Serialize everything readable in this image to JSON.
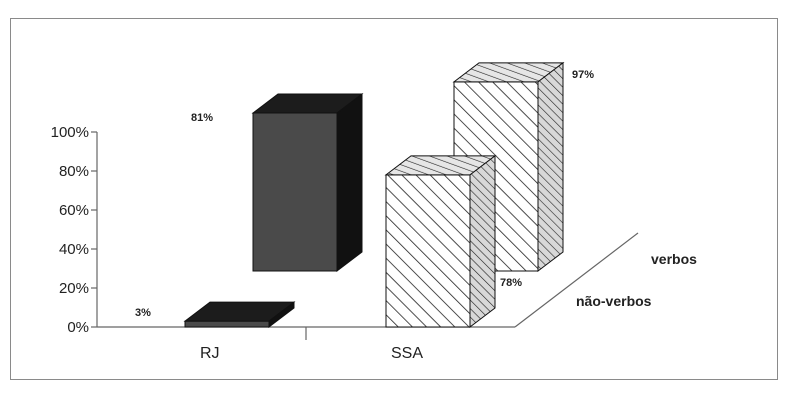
{
  "chart_data": {
    "type": "bar",
    "categories": [
      "RJ",
      "SSA"
    ],
    "series": [
      {
        "name": "não-verbos",
        "values": [
          3,
          78
        ],
        "data_labels": [
          "3%",
          "78%"
        ]
      },
      {
        "name": "verbos",
        "values": [
          81,
          97
        ],
        "data_labels": [
          "81%",
          "97%"
        ]
      }
    ],
    "yticks": [
      "100%",
      "80%",
      "60%",
      "40%",
      "20%",
      "0%"
    ],
    "ylim": [
      0,
      100
    ],
    "colors": {
      "dark_face": "#4a4a4a",
      "dark_top": "#1c1c1c",
      "dark_side": "#111111",
      "hatch_stroke": "#222222"
    },
    "legend": "series labels on depth axis, right"
  }
}
